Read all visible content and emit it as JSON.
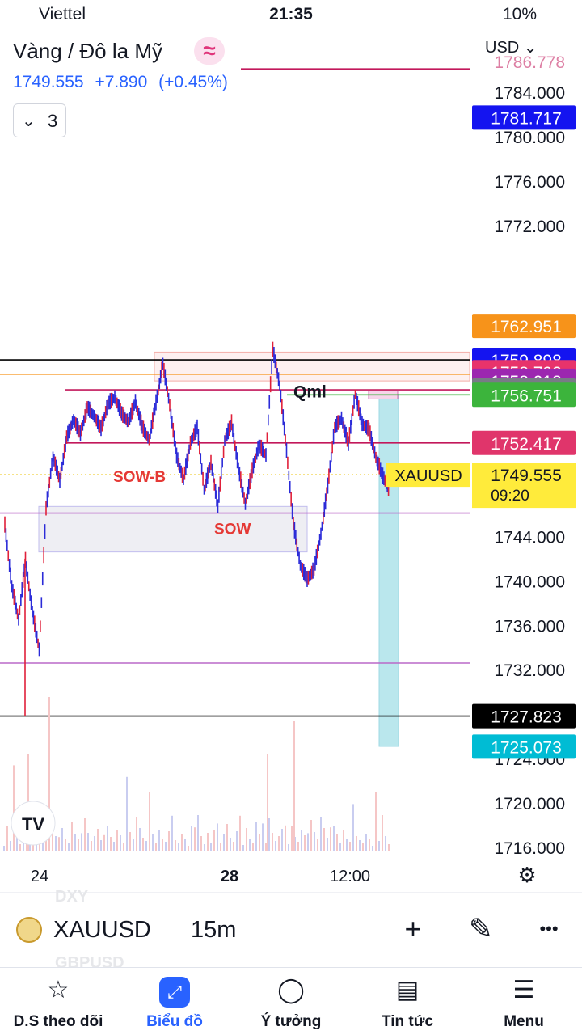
{
  "status_bar": {
    "carrier": "Viettel",
    "time": "21:35",
    "battery": "10%"
  },
  "header": {
    "title": "Vàng / Đô la Mỹ",
    "badge": "≈",
    "last_price": "1749.555",
    "change": "+7.890",
    "change_pct": "(+0.45%)",
    "collapse_count": "3",
    "currency": "USD"
  },
  "chart_data": {
    "type": "candlestick",
    "x_ticks": [
      "24",
      "28",
      "12:00"
    ],
    "y_ticks": [
      "1784.000",
      "1780.000",
      "1776.000",
      "1772.000",
      "1744.000",
      "1740.000",
      "1736.000",
      "1732.000",
      "1724.000",
      "1720.000",
      "1716.000"
    ],
    "ylim": [
      1715,
      1787
    ],
    "top_label": "1786.778",
    "price_labels": [
      {
        "value": "1781.717",
        "color": "#1414f0"
      },
      {
        "value": "1762.951",
        "color": "#f7931a"
      },
      {
        "value": "1759.898",
        "color": "#1414f0"
      },
      {
        "value": "1758.792",
        "color": "#e8336b"
      },
      {
        "value": "1758.018",
        "color": "#9c27b0"
      },
      {
        "value": "1757.139",
        "color": "#787b86"
      },
      {
        "value": "1756.751",
        "color": "#3cb43c"
      },
      {
        "value": "1752.417",
        "color": "#e0356b"
      },
      {
        "value": "1727.823",
        "color": "#000000"
      },
      {
        "value": "1725.073",
        "color": "#00bcd4"
      }
    ],
    "current": {
      "symbol": "XAUUSD",
      "value": "1749.555",
      "countdown": "09:20",
      "color": "#ffeb3b"
    },
    "annotations": [
      "Qml",
      "SOW-B",
      "SOW"
    ],
    "horizontal_lines": [
      {
        "value": 1759.898,
        "color": "#000000"
      },
      {
        "value": 1758.6,
        "color": "#f7931a"
      },
      {
        "value": 1727.823,
        "color": "#000000"
      },
      {
        "value": 1746.1,
        "color": "#ba68c8"
      },
      {
        "value": 1732.6,
        "color": "#ba68c8"
      },
      {
        "value": 1786.1,
        "color": "#c2185b"
      }
    ],
    "zones": [
      {
        "name": "supply",
        "y1": 1760.6,
        "y2": 1758.0,
        "color": "#f8bbb7"
      },
      {
        "name": "sow",
        "y1": 1746.7,
        "y2": 1742.6,
        "color": "#c7c3f0"
      },
      {
        "name": "target",
        "y1": 1756.8,
        "y2": 1725.1,
        "color": "#8fd3e0"
      }
    ],
    "series": [
      {
        "name": "price",
        "values": [
          1745.0,
          1739.5,
          1736.5,
          1741.8,
          1737.2,
          1733.8,
          1746.5,
          1751.2,
          1749.0,
          1752.9,
          1754.5,
          1753.2,
          1755.6,
          1754.8,
          1753.7,
          1755.9,
          1756.5,
          1755.0,
          1754.3,
          1756.1,
          1753.8,
          1752.7,
          1756.0,
          1759.5,
          1755.8,
          1751.2,
          1749.1,
          1752.4,
          1753.8,
          1748.2,
          1750.6,
          1746.7,
          1752.6,
          1754.2,
          1750.1,
          1746.9,
          1749.9,
          1752.2,
          1751.3,
          1760.8,
          1757.6,
          1751.7,
          1745.1,
          1741.4,
          1740.1,
          1741.0,
          1744.2,
          1748.5,
          1753.8,
          1754.6,
          1752.3,
          1756.8,
          1754.1,
          1753.6,
          1751.1,
          1749.4,
          1748.1
        ]
      }
    ]
  },
  "watermark": "TV",
  "toolbar": {
    "ghost_above": "DXY",
    "ghost_below": "GBPUSD",
    "symbol": "XAUUSD",
    "interval": "15m",
    "add_icon": "+",
    "draw_icon": "✎",
    "more_icon": "•••"
  },
  "tabs": [
    {
      "label": "D.S theo dõi",
      "icon": "☆"
    },
    {
      "label": "Biểu đồ",
      "icon": "⤢"
    },
    {
      "label": "Ý tưởng",
      "icon": "◯"
    },
    {
      "label": "Tin tức",
      "icon": "▤"
    },
    {
      "label": "Menu",
      "icon": "☰"
    }
  ]
}
